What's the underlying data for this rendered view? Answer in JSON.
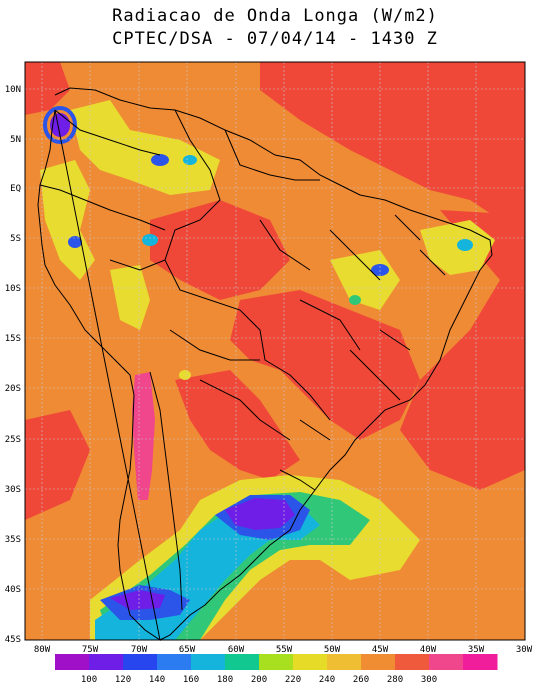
{
  "header": {
    "title_line1": "Radiacao de Onda Longa (W/m2)",
    "title_line2": "CPTEC/DSA - 07/04/14 - 1430 Z"
  },
  "map": {
    "lat_labels": [
      "10N",
      "5N",
      "EQ",
      "5S",
      "10S",
      "15S",
      "20S",
      "25S",
      "30S",
      "35S",
      "40S",
      "45S"
    ],
    "lon_labels": [
      "80W",
      "75W",
      "70W",
      "65W",
      "60W",
      "55W",
      "50W",
      "45W",
      "40W",
      "35W",
      "30W"
    ]
  },
  "colorbar": {
    "colors": [
      "#a010c8",
      "#6e1ee6",
      "#2846f0",
      "#2a7cf0",
      "#14b4dc",
      "#10c890",
      "#a8e020",
      "#e6dc28",
      "#f0be32",
      "#f08c32",
      "#f05a3c",
      "#f0468c",
      "#f01e9a"
    ],
    "labels": [
      "100",
      "120",
      "140",
      "160",
      "180",
      "200",
      "220",
      "240",
      "260",
      "280",
      "300"
    ]
  },
  "palette": {
    "orange": "#ef8a35",
    "red": "#f04838",
    "yellow": "#e8dc30",
    "lightgreen": "#a8e020",
    "green": "#30c878",
    "cyan": "#14b4dc",
    "blue": "#2a55e8",
    "purple": "#6e1ee6",
    "violet": "#a010c8",
    "pink": "#f0468c",
    "magenta": "#e8208c"
  }
}
